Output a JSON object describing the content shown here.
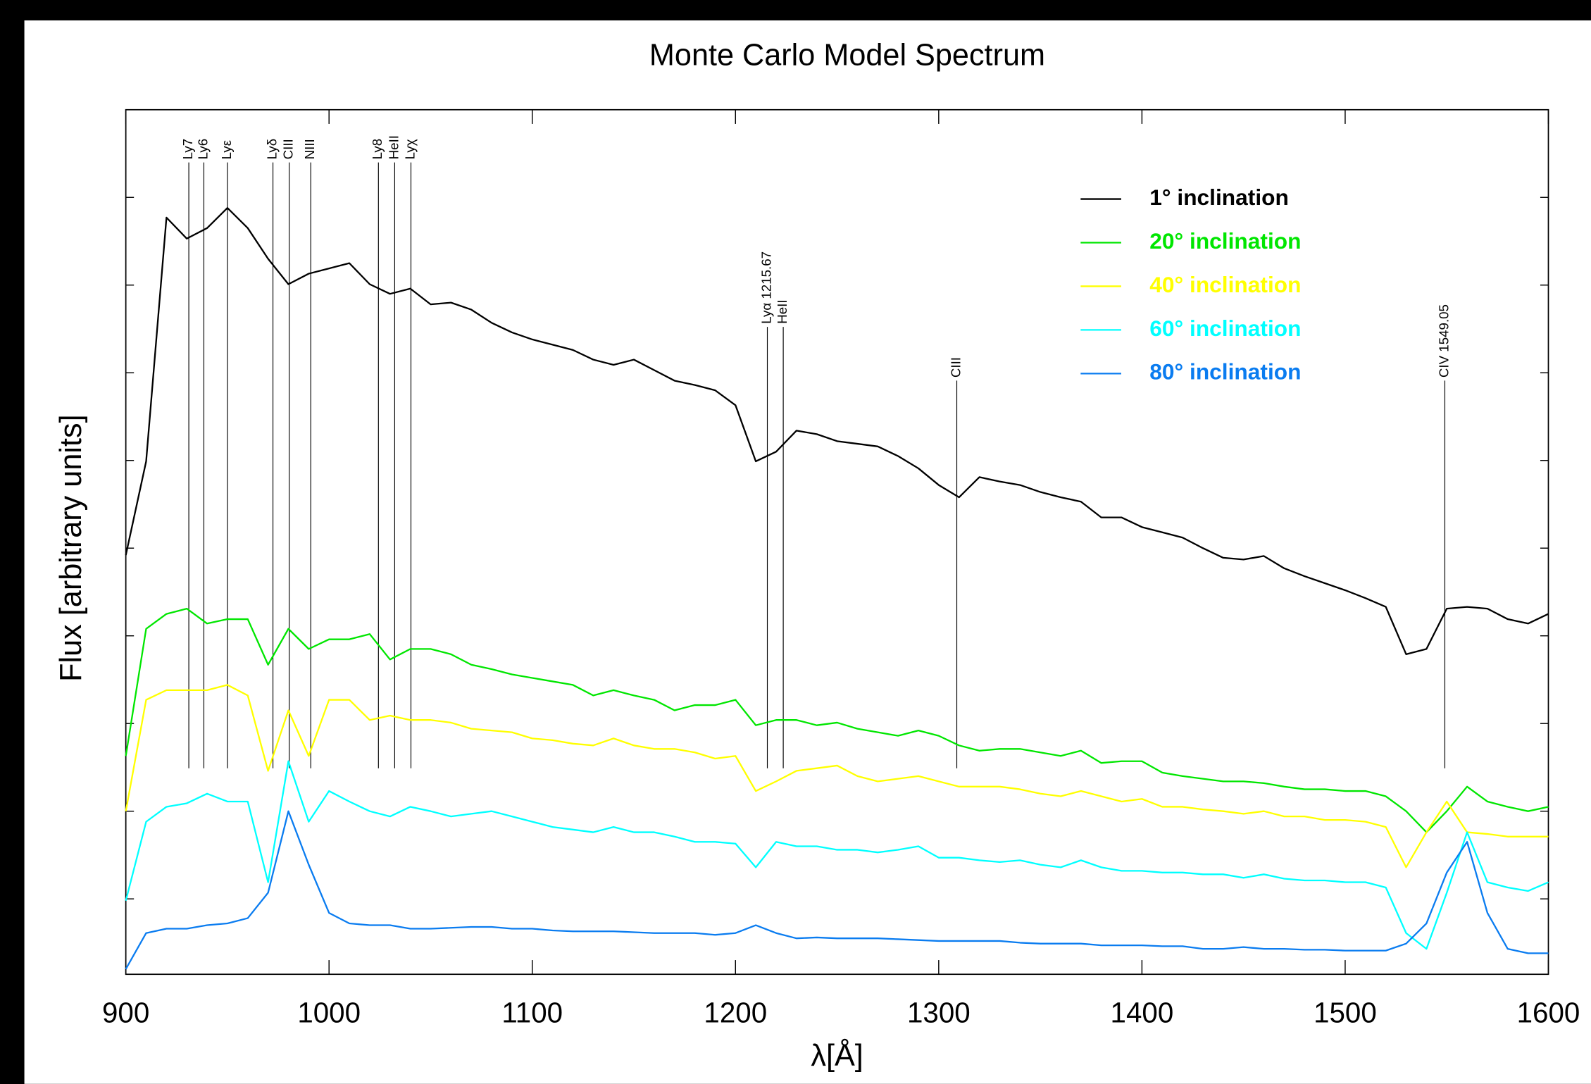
{
  "chart_data": {
    "type": "line",
    "title": "Monte Carlo Model Spectrum",
    "x_label": "λ[Å]",
    "y_label": "Flux [arbitrary units]",
    "xlim": [
      900,
      1600
    ],
    "xticks": [
      900,
      1000,
      1100,
      1200,
      1300,
      1400,
      1500,
      1600
    ],
    "ylim": [
      0.14,
      10.0
    ],
    "yticks": [
      1,
      2,
      3,
      4,
      5,
      6,
      7,
      8,
      9
    ],
    "legend": "upper right",
    "x": [
      900,
      910,
      920,
      930,
      940,
      950,
      960,
      970,
      980,
      990,
      1000,
      1010,
      1020,
      1030,
      1040,
      1050,
      1060,
      1070,
      1080,
      1090,
      1100,
      1110,
      1120,
      1130,
      1140,
      1150,
      1160,
      1170,
      1180,
      1190,
      1200,
      1210,
      1220,
      1230,
      1240,
      1250,
      1260,
      1270,
      1280,
      1290,
      1300,
      1310,
      1320,
      1330,
      1340,
      1350,
      1360,
      1370,
      1380,
      1390,
      1400,
      1410,
      1420,
      1430,
      1440,
      1450,
      1460,
      1470,
      1480,
      1490,
      1500,
      1510,
      1520,
      1530,
      1540,
      1550,
      1560,
      1570,
      1580,
      1590,
      1600
    ],
    "series": [
      {
        "name": "1° inclination",
        "color": "#000000",
        "values": [
          4.92,
          5.99,
          8.77,
          8.53,
          8.65,
          8.88,
          8.65,
          8.3,
          8.01,
          8.13,
          8.19,
          8.25,
          8.01,
          7.9,
          7.96,
          7.78,
          7.8,
          7.72,
          7.57,
          7.46,
          7.38,
          7.32,
          7.26,
          7.15,
          7.09,
          7.15,
          7.03,
          6.91,
          6.86,
          6.8,
          6.63,
          5.99,
          6.1,
          6.34,
          6.3,
          6.22,
          6.19,
          6.16,
          6.05,
          5.91,
          5.72,
          5.58,
          5.81,
          5.76,
          5.72,
          5.64,
          5.58,
          5.53,
          5.35,
          5.35,
          5.24,
          5.18,
          5.12,
          5.0,
          4.89,
          4.87,
          4.91,
          4.77,
          4.68,
          4.6,
          4.52,
          4.43,
          4.33,
          3.79,
          3.85,
          4.31,
          4.33,
          4.31,
          4.19,
          4.14,
          4.25
        ]
      },
      {
        "name": "20° inclination",
        "color": "#00e600",
        "values": [
          2.63,
          4.08,
          4.25,
          4.31,
          4.14,
          4.19,
          4.19,
          3.67,
          4.08,
          3.85,
          3.96,
          3.96,
          4.02,
          3.73,
          3.85,
          3.85,
          3.79,
          3.67,
          3.62,
          3.56,
          3.52,
          3.48,
          3.44,
          3.32,
          3.38,
          3.32,
          3.27,
          3.15,
          3.21,
          3.21,
          3.27,
          2.98,
          3.04,
          3.04,
          2.98,
          3.01,
          2.94,
          2.9,
          2.86,
          2.92,
          2.86,
          2.75,
          2.69,
          2.71,
          2.71,
          2.67,
          2.63,
          2.69,
          2.55,
          2.57,
          2.57,
          2.44,
          2.4,
          2.37,
          2.34,
          2.34,
          2.32,
          2.28,
          2.25,
          2.25,
          2.23,
          2.23,
          2.17,
          2.0,
          1.76,
          2.0,
          2.28,
          2.11,
          2.05,
          2.0,
          2.05
        ]
      },
      {
        "name": "40° inclination",
        "color": "#ffff00",
        "values": [
          2.0,
          3.27,
          3.38,
          3.38,
          3.38,
          3.44,
          3.32,
          2.46,
          3.15,
          2.63,
          3.27,
          3.27,
          3.04,
          3.09,
          3.04,
          3.04,
          3.01,
          2.94,
          2.92,
          2.9,
          2.83,
          2.81,
          2.77,
          2.75,
          2.83,
          2.75,
          2.71,
          2.71,
          2.67,
          2.6,
          2.63,
          2.23,
          2.34,
          2.46,
          2.49,
          2.52,
          2.4,
          2.34,
          2.37,
          2.4,
          2.34,
          2.28,
          2.28,
          2.28,
          2.25,
          2.2,
          2.17,
          2.23,
          2.17,
          2.11,
          2.14,
          2.05,
          2.05,
          2.02,
          2.0,
          1.97,
          2.0,
          1.94,
          1.94,
          1.9,
          1.9,
          1.88,
          1.82,
          1.36,
          1.76,
          2.11,
          1.76,
          1.74,
          1.71,
          1.71,
          1.71
        ]
      },
      {
        "name": "60° inclination",
        "color": "#00ffff",
        "values": [
          0.98,
          1.88,
          2.05,
          2.09,
          2.2,
          2.11,
          2.11,
          1.19,
          2.57,
          1.88,
          2.23,
          2.11,
          2.0,
          1.94,
          2.05,
          2.0,
          1.94,
          1.97,
          2.0,
          1.94,
          1.88,
          1.82,
          1.79,
          1.76,
          1.82,
          1.76,
          1.76,
          1.71,
          1.65,
          1.65,
          1.63,
          1.36,
          1.65,
          1.6,
          1.6,
          1.56,
          1.56,
          1.53,
          1.56,
          1.6,
          1.47,
          1.47,
          1.44,
          1.42,
          1.44,
          1.39,
          1.36,
          1.44,
          1.36,
          1.32,
          1.32,
          1.3,
          1.3,
          1.28,
          1.28,
          1.24,
          1.28,
          1.23,
          1.21,
          1.21,
          1.19,
          1.19,
          1.13,
          0.61,
          0.43,
          1.07,
          1.76,
          1.19,
          1.13,
          1.09,
          1.19
        ]
      },
      {
        "name": "80° inclination",
        "color": "#0a7cf0",
        "values": [
          0.2,
          0.61,
          0.66,
          0.66,
          0.7,
          0.72,
          0.78,
          1.07,
          2.0,
          1.39,
          0.84,
          0.72,
          0.7,
          0.7,
          0.66,
          0.66,
          0.67,
          0.68,
          0.68,
          0.66,
          0.66,
          0.64,
          0.63,
          0.63,
          0.63,
          0.62,
          0.61,
          0.61,
          0.61,
          0.59,
          0.61,
          0.7,
          0.61,
          0.55,
          0.56,
          0.55,
          0.55,
          0.55,
          0.54,
          0.53,
          0.52,
          0.52,
          0.52,
          0.52,
          0.5,
          0.49,
          0.49,
          0.49,
          0.47,
          0.47,
          0.47,
          0.46,
          0.46,
          0.43,
          0.43,
          0.45,
          0.43,
          0.43,
          0.42,
          0.42,
          0.41,
          0.41,
          0.41,
          0.49,
          0.72,
          1.3,
          1.65,
          0.84,
          0.43,
          0.38,
          0.38
        ]
      }
    ],
    "annotations": [
      {
        "text": "Ly7",
        "x": 931
      },
      {
        "text": "Ly6",
        "x": 938.4
      },
      {
        "text": "Lyε",
        "x": 950
      },
      {
        "text": "Lyδ",
        "x": 972.4
      },
      {
        "text": "CIII",
        "x": 980.4
      },
      {
        "text": "NIII",
        "x": 991
      },
      {
        "text": "Ly8",
        "x": 1024.3
      },
      {
        "text": "HeII",
        "x": 1032.3
      },
      {
        "text": "Lyχ",
        "x": 1040.3
      },
      {
        "text": "Lyα 1215.67",
        "x": 1215.67
      },
      {
        "text": "HeII",
        "x": 1223.5
      },
      {
        "text": "CIII",
        "x": 1308.9
      },
      {
        "text": "CIV 1549.05",
        "x": 1549.05
      }
    ]
  }
}
